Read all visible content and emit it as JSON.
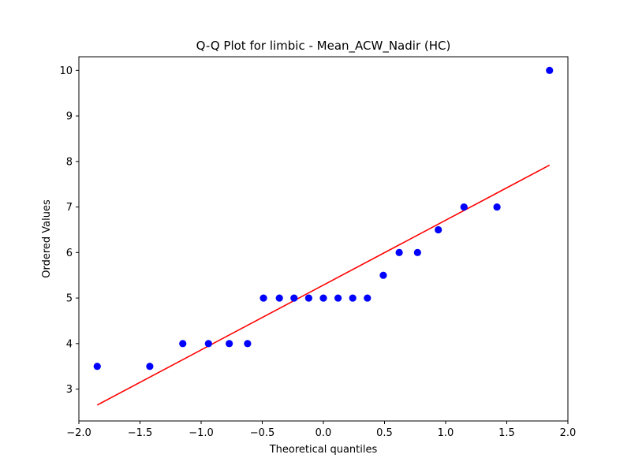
{
  "chart_data": {
    "type": "scatter",
    "title": "Q-Q Plot for limbic - Mean_ACW_Nadir (HC)",
    "xlabel": "Theoretical quantiles",
    "ylabel": "Ordered Values",
    "xlim": [
      -2.0,
      2.0
    ],
    "ylim": [
      2.3,
      10.3
    ],
    "xticks": [
      -2.0,
      -1.5,
      -1.0,
      -0.5,
      0.0,
      0.5,
      1.0,
      1.5,
      2.0
    ],
    "xtick_labels": [
      "−2.0",
      "−1.5",
      "−1.0",
      "−0.5",
      "0.0",
      "0.5",
      "1.0",
      "1.5",
      "2.0"
    ],
    "yticks": [
      3,
      4,
      5,
      6,
      7,
      8,
      9,
      10
    ],
    "ytick_labels": [
      "3",
      "4",
      "5",
      "6",
      "7",
      "8",
      "9",
      "10"
    ],
    "grid": false,
    "legend": "none",
    "points": {
      "color": "#0000ff",
      "x": [
        -1.85,
        -1.42,
        -1.15,
        -0.94,
        -0.77,
        -0.62,
        -0.49,
        -0.36,
        -0.24,
        -0.12,
        0.0,
        0.12,
        0.24,
        0.36,
        0.49,
        0.62,
        0.77,
        0.94,
        1.15,
        1.42,
        1.85
      ],
      "y": [
        3.5,
        3.5,
        4.0,
        4.0,
        4.0,
        4.0,
        5.0,
        5.0,
        5.0,
        5.0,
        5.0,
        5.0,
        5.0,
        5.0,
        5.5,
        6.0,
        6.0,
        6.5,
        7.0,
        7.0,
        10.0
      ]
    },
    "fit_line": {
      "color": "#ff0000",
      "x": [
        -1.85,
        1.85
      ],
      "y": [
        2.65,
        7.92
      ]
    }
  }
}
